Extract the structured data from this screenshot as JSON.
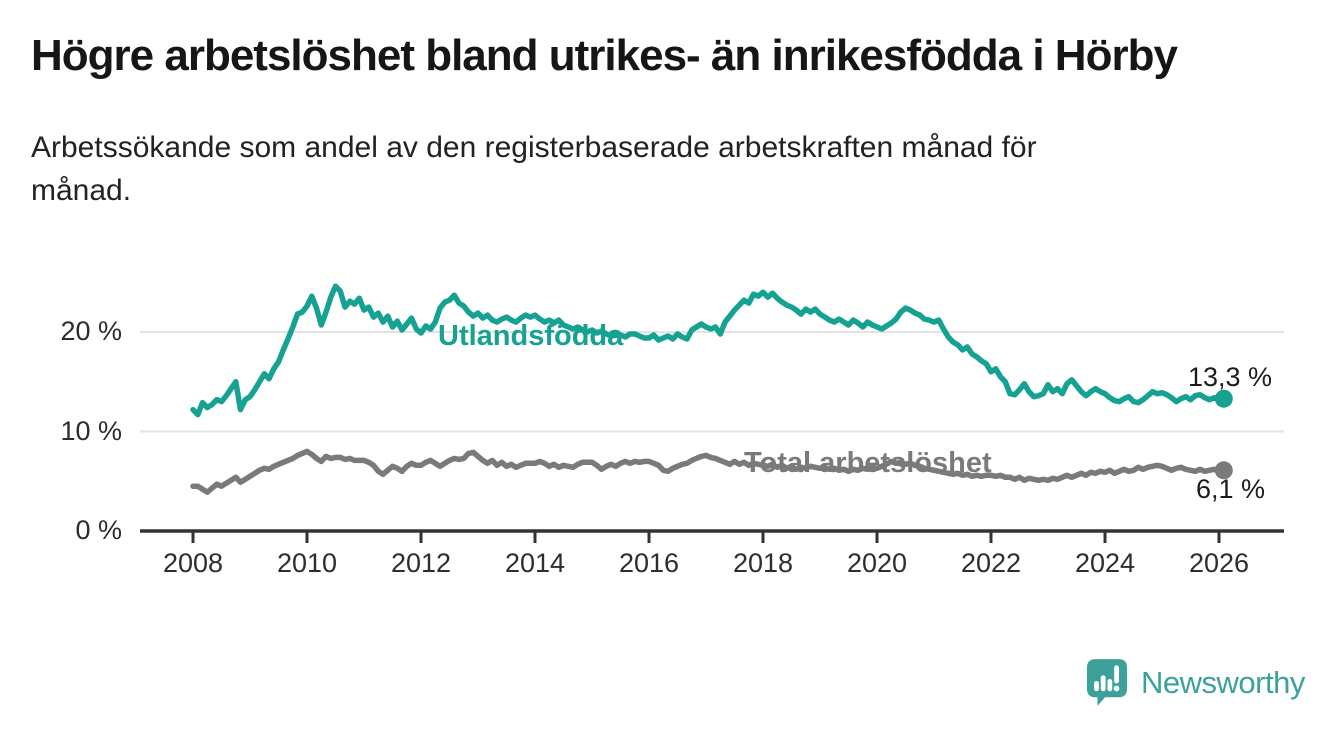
{
  "title": "Högre arbetslöshet bland utrikes- än inrikesfödda i Hörby",
  "subtitle_line1": "Arbetssökande som andel av den registerbaserade arbetskraften månad för",
  "subtitle_line2": "månad.",
  "logo": {
    "name": "Newsworthy",
    "icon": "newsworthy-pin-barchart-icon",
    "color": "#3da19b"
  },
  "chart_data": {
    "type": "line",
    "unit": "%",
    "x_start_year": 2008,
    "x_points_per_year": 12,
    "x_end_label_note": "monthly data Jan 2008 - Feb 2026",
    "ylim": [
      0,
      26
    ],
    "grid": "horizontal",
    "yticks": [
      {
        "value": 0,
        "label": "0 %"
      },
      {
        "value": 10,
        "label": "10 %"
      },
      {
        "value": 20,
        "label": "20 %"
      }
    ],
    "xticks": [
      {
        "year": 2008,
        "label": "2008"
      },
      {
        "year": 2010,
        "label": "2010"
      },
      {
        "year": 2012,
        "label": "2012"
      },
      {
        "year": 2014,
        "label": "2014"
      },
      {
        "year": 2016,
        "label": "2016"
      },
      {
        "year": 2018,
        "label": "2018"
      },
      {
        "year": 2020,
        "label": "2020"
      },
      {
        "year": 2022,
        "label": "2022"
      },
      {
        "year": 2024,
        "label": "2024"
      },
      {
        "year": 2026,
        "label": "2026"
      }
    ],
    "series": [
      {
        "name": "Utlandsfödda",
        "color": "#16a293",
        "end_label": "13,3 %",
        "end_value": 13.3,
        "values": [
          12.2,
          11.7,
          12.9,
          12.4,
          12.7,
          13.2,
          13.0,
          13.6,
          14.3,
          15.0,
          12.2,
          13.2,
          13.5,
          14.2,
          15.0,
          15.8,
          15.3,
          16.3,
          17.0,
          18.2,
          19.3,
          20.5,
          21.8,
          22.0,
          22.6,
          23.6,
          22.4,
          20.7,
          22.0,
          23.5,
          24.6,
          24.1,
          22.5,
          23.1,
          22.8,
          23.4,
          22.2,
          22.5,
          21.5,
          21.9,
          21.0,
          21.6,
          20.5,
          21.1,
          20.2,
          20.8,
          21.4,
          20.3,
          19.9,
          20.6,
          20.3,
          21.0,
          22.4,
          23.0,
          23.2,
          23.7,
          22.9,
          22.6,
          22.0,
          21.6,
          21.9,
          21.4,
          21.7,
          21.2,
          21.0,
          21.3,
          21.5,
          21.2,
          21.0,
          21.4,
          21.7,
          21.5,
          21.7,
          21.3,
          21.0,
          21.2,
          20.9,
          21.2,
          20.7,
          20.5,
          20.3,
          20.5,
          20.2,
          20.0,
          20.2,
          19.9,
          20.1,
          19.8,
          19.6,
          19.9,
          19.7,
          19.5,
          19.8,
          19.8,
          19.6,
          19.4,
          19.4,
          19.7,
          19.2,
          19.4,
          19.6,
          19.3,
          19.8,
          19.5,
          19.3,
          20.2,
          20.5,
          20.8,
          20.5,
          20.3,
          20.5,
          19.8,
          21.0,
          21.6,
          22.2,
          22.7,
          23.2,
          22.9,
          23.8,
          23.6,
          24.0,
          23.5,
          23.9,
          23.4,
          23.0,
          22.7,
          22.5,
          22.2,
          21.8,
          22.3,
          22.0,
          22.3,
          21.8,
          21.5,
          21.2,
          21.0,
          21.3,
          21.0,
          20.7,
          21.2,
          20.9,
          20.5,
          21.0,
          20.7,
          20.5,
          20.3,
          20.6,
          20.9,
          21.3,
          22.0,
          22.4,
          22.2,
          21.9,
          21.7,
          21.3,
          21.2,
          21.0,
          21.2,
          20.3,
          19.5,
          19.0,
          18.7,
          18.2,
          18.5,
          17.8,
          17.5,
          17.1,
          16.8,
          16.0,
          16.3,
          15.5,
          15.0,
          13.8,
          13.7,
          14.2,
          14.8,
          14.0,
          13.5,
          13.6,
          13.8,
          14.7,
          14.0,
          14.3,
          13.8,
          14.8,
          15.2,
          14.6,
          14.0,
          13.6,
          14.0,
          14.3,
          14.0,
          13.8,
          13.4,
          13.1,
          13.0,
          13.3,
          13.5,
          13.0,
          12.9,
          13.2,
          13.6,
          14.0,
          13.8,
          13.9,
          13.7,
          13.4,
          13.0,
          13.3,
          13.5,
          13.2,
          13.6,
          13.7,
          13.4,
          13.2,
          13.4,
          13.2,
          13.3
        ]
      },
      {
        "name": "Total arbetslöshet",
        "color": "#7a7a7a",
        "end_label": "6,1 %",
        "end_value": 6.1,
        "values": [
          4.5,
          4.5,
          4.2,
          3.9,
          4.3,
          4.7,
          4.5,
          4.8,
          5.1,
          5.4,
          4.9,
          5.2,
          5.5,
          5.8,
          6.1,
          6.3,
          6.2,
          6.5,
          6.7,
          6.9,
          7.1,
          7.3,
          7.6,
          7.8,
          8.0,
          7.7,
          7.3,
          7.0,
          7.5,
          7.3,
          7.4,
          7.4,
          7.2,
          7.3,
          7.1,
          7.1,
          7.1,
          6.9,
          6.6,
          6.0,
          5.7,
          6.1,
          6.5,
          6.3,
          6.0,
          6.5,
          6.8,
          6.6,
          6.6,
          6.9,
          7.1,
          6.8,
          6.5,
          6.8,
          7.1,
          7.3,
          7.2,
          7.3,
          7.8,
          7.9,
          7.5,
          7.1,
          6.8,
          7.1,
          6.6,
          6.9,
          6.5,
          6.7,
          6.4,
          6.6,
          6.8,
          6.8,
          6.8,
          7.0,
          6.8,
          6.5,
          6.7,
          6.4,
          6.6,
          6.5,
          6.4,
          6.7,
          6.9,
          6.9,
          6.9,
          6.6,
          6.2,
          6.5,
          6.7,
          6.5,
          6.8,
          7.0,
          6.8,
          7.0,
          6.9,
          7.0,
          7.0,
          6.8,
          6.6,
          6.1,
          6.0,
          6.3,
          6.5,
          6.7,
          6.8,
          7.1,
          7.3,
          7.5,
          7.6,
          7.4,
          7.3,
          7.1,
          6.9,
          6.7,
          7.0,
          6.7,
          6.9,
          6.6,
          6.8,
          6.7,
          6.6,
          6.5,
          6.7,
          6.4,
          6.6,
          6.3,
          6.5,
          6.2,
          6.4,
          6.3,
          6.5,
          6.4,
          6.3,
          6.4,
          6.2,
          6.3,
          6.1,
          6.2,
          6.0,
          6.2,
          6.1,
          6.3,
          6.2,
          6.4,
          6.3,
          6.5,
          6.7,
          7.0,
          6.8,
          6.9,
          6.7,
          6.8,
          6.6,
          6.5,
          6.3,
          6.2,
          6.1,
          6.0,
          5.9,
          5.8,
          5.7,
          5.8,
          5.6,
          5.7,
          5.5,
          5.6,
          5.5,
          5.6,
          5.6,
          5.5,
          5.6,
          5.4,
          5.4,
          5.2,
          5.4,
          5.1,
          5.3,
          5.2,
          5.1,
          5.2,
          5.1,
          5.3,
          5.2,
          5.4,
          5.6,
          5.4,
          5.6,
          5.8,
          5.6,
          5.9,
          5.8,
          6.0,
          5.9,
          6.1,
          5.8,
          6.0,
          6.2,
          6.0,
          6.1,
          6.4,
          6.2,
          6.4,
          6.5,
          6.6,
          6.5,
          6.3,
          6.1,
          6.3,
          6.4,
          6.2,
          6.1,
          6.0,
          6.2,
          6.0,
          6.1,
          6.2,
          6.0,
          6.1
        ]
      }
    ],
    "colors": {
      "grid": "#e3e3e3",
      "axis": "#333333",
      "tick_text": "#2d2d2d"
    }
  }
}
